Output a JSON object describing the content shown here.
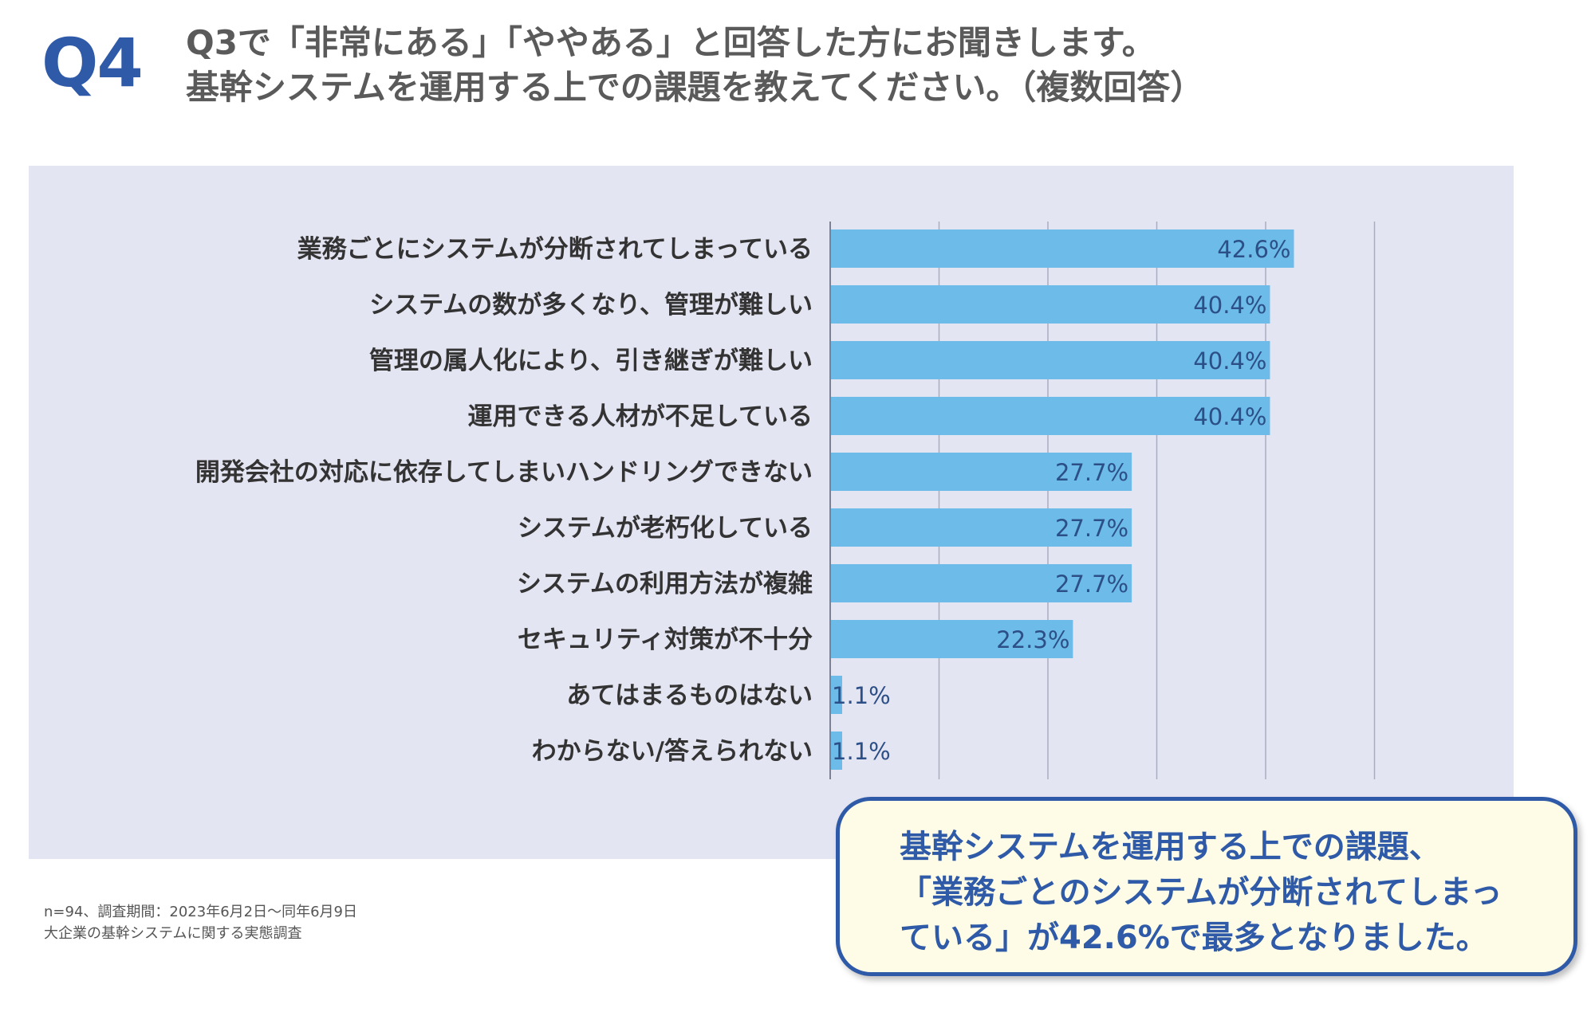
{
  "header": {
    "q_label": "Q4",
    "question_line1": "Q3で「非常にある」「ややある」と回答した方にお聞きします。",
    "question_line2": "基幹システムを運用する上での課題を教えてください。（複数回答）"
  },
  "chart_data": {
    "type": "bar",
    "orientation": "horizontal",
    "categories": [
      "業務ごとにシステムが分断されてしまっている",
      "システムの数が多くなり、管理が難しい",
      "管理の属人化により、引き継ぎが難しい",
      "運用できる人材が不足している",
      "開発会社の対応に依存してしまいハンドリングできない",
      "システムが老朽化している",
      "システムの利用方法が複雑",
      "セキュリティ対策が不十分",
      "あてはまるものはない",
      "わからない/答えられない"
    ],
    "values": [
      42.6,
      40.4,
      40.4,
      40.4,
      27.7,
      27.7,
      27.7,
      22.3,
      1.1,
      1.1
    ],
    "value_labels": [
      "42.6%",
      "40.4%",
      "40.4%",
      "40.4%",
      "27.7%",
      "27.7%",
      "27.7%",
      "22.3%",
      "1.1%",
      "1.1%"
    ],
    "xlim": [
      0,
      50
    ],
    "grid": true,
    "bar_color": "#6dbbe8",
    "label_color": "#2b4f86"
  },
  "footnote": {
    "line1": "n=94、調査期間：2023年6月2日〜同年6月9日",
    "line2": "大企業の基幹システムに関する実態調査"
  },
  "callout": {
    "line1": "基幹システムを運用する上での課題、",
    "line2": "「業務ごとのシステムが分断されてしまっ",
    "line3": "ている」が42.6%で最多となりました。"
  },
  "colors": {
    "accent": "#2f5aa8",
    "panel_bg": "#e4e5f2",
    "callout_bg": "#fefce6"
  }
}
